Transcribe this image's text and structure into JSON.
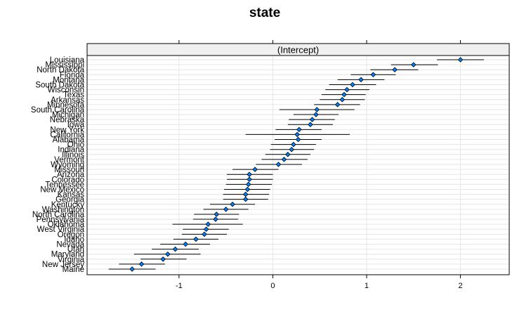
{
  "chart_data": {
    "type": "scatter",
    "title": "state",
    "strip_label": "(Intercept)",
    "xlim": [
      -1.98,
      2.52
    ],
    "x_ticks": [
      -1,
      0,
      1,
      2
    ],
    "x_tick_labels": [
      "-1",
      "0",
      "1",
      "2"
    ],
    "grid": true,
    "colors": {
      "point": "#0080ff",
      "interval": "#000000",
      "strip": "#f0f0f0",
      "grid": "#e6e6e6"
    },
    "points": [
      {
        "state": "Louisiana",
        "estimate": 2.0,
        "lower": 1.75,
        "upper": 2.25
      },
      {
        "state": "Mississippi",
        "estimate": 1.5,
        "lower": 1.26,
        "upper": 1.76
      },
      {
        "state": "North Dakota",
        "estimate": 1.3,
        "lower": 1.04,
        "upper": 1.55
      },
      {
        "state": "Florida",
        "estimate": 1.07,
        "lower": 0.83,
        "upper": 1.31
      },
      {
        "state": "Montana",
        "estimate": 0.94,
        "lower": 0.69,
        "upper": 1.19
      },
      {
        "state": "South Dakota",
        "estimate": 0.85,
        "lower": 0.6,
        "upper": 1.1
      },
      {
        "state": "Wisconsin",
        "estimate": 0.79,
        "lower": 0.56,
        "upper": 1.03
      },
      {
        "state": "Texas",
        "estimate": 0.76,
        "lower": 0.52,
        "upper": 0.99
      },
      {
        "state": "Arkansas",
        "estimate": 0.74,
        "lower": 0.5,
        "upper": 0.98
      },
      {
        "state": "Minnesota",
        "estimate": 0.69,
        "lower": 0.44,
        "upper": 0.93
      },
      {
        "state": "South Carolina",
        "estimate": 0.47,
        "lower": 0.07,
        "upper": 0.87
      },
      {
        "state": "Michigan",
        "estimate": 0.46,
        "lower": 0.22,
        "upper": 0.7
      },
      {
        "state": "Nebraska",
        "estimate": 0.42,
        "lower": 0.17,
        "upper": 0.66
      },
      {
        "state": "Iowa",
        "estimate": 0.4,
        "lower": 0.16,
        "upper": 0.64
      },
      {
        "state": "New York",
        "estimate": 0.28,
        "lower": 0.03,
        "upper": 0.52
      },
      {
        "state": "California",
        "estimate": 0.26,
        "lower": -0.29,
        "upper": 0.82
      },
      {
        "state": "Alabama",
        "estimate": 0.27,
        "lower": 0.02,
        "upper": 0.52
      },
      {
        "state": "Ohio",
        "estimate": 0.22,
        "lower": -0.02,
        "upper": 0.46
      },
      {
        "state": "Indiana",
        "estimate": 0.2,
        "lower": -0.03,
        "upper": 0.44
      },
      {
        "state": "Illinois",
        "estimate": 0.16,
        "lower": -0.08,
        "upper": 0.4
      },
      {
        "state": "Vermont",
        "estimate": 0.12,
        "lower": -0.12,
        "upper": 0.37
      },
      {
        "state": "Wyoming",
        "estimate": 0.06,
        "lower": -0.18,
        "upper": 0.31
      },
      {
        "state": "Missouri",
        "estimate": -0.19,
        "lower": -0.43,
        "upper": 0.06
      },
      {
        "state": "Arizona",
        "estimate": -0.25,
        "lower": -0.49,
        "upper": 0.0
      },
      {
        "state": "Colorado",
        "estimate": -0.25,
        "lower": -0.49,
        "upper": 0.0
      },
      {
        "state": "Tennessee",
        "estimate": -0.26,
        "lower": -0.5,
        "upper": -0.01
      },
      {
        "state": "New Mexico",
        "estimate": -0.27,
        "lower": -0.52,
        "upper": -0.03
      },
      {
        "state": "Kansas",
        "estimate": -0.29,
        "lower": -0.53,
        "upper": -0.04
      },
      {
        "state": "Georgia",
        "estimate": -0.29,
        "lower": -0.53,
        "upper": -0.05
      },
      {
        "state": "Kentucky",
        "estimate": -0.43,
        "lower": -0.67,
        "upper": -0.19
      },
      {
        "state": "Washington",
        "estimate": -0.5,
        "lower": -0.74,
        "upper": -0.26
      },
      {
        "state": "North Carolina",
        "estimate": -0.6,
        "lower": -0.84,
        "upper": -0.36
      },
      {
        "state": "Pennsylvania",
        "estimate": -0.61,
        "lower": -0.85,
        "upper": -0.37
      },
      {
        "state": "Oklahoma",
        "estimate": -0.69,
        "lower": -1.07,
        "upper": -0.32
      },
      {
        "state": "West Virginia",
        "estimate": -0.71,
        "lower": -0.96,
        "upper": -0.47
      },
      {
        "state": "Oregon",
        "estimate": -0.73,
        "lower": -0.97,
        "upper": -0.49
      },
      {
        "state": "Idaho",
        "estimate": -0.82,
        "lower": -1.06,
        "upper": -0.58
      },
      {
        "state": "Nevada",
        "estimate": -0.93,
        "lower": -1.2,
        "upper": -0.67
      },
      {
        "state": "Utah",
        "estimate": -1.04,
        "lower": -1.29,
        "upper": -0.79
      },
      {
        "state": "Maryland",
        "estimate": -1.12,
        "lower": -1.48,
        "upper": -0.77
      },
      {
        "state": "Virginia",
        "estimate": -1.17,
        "lower": -1.41,
        "upper": -0.92
      },
      {
        "state": "New Jersey",
        "estimate": -1.4,
        "lower": -1.64,
        "upper": -1.15
      },
      {
        "state": "Maine",
        "estimate": -1.5,
        "lower": -1.75,
        "upper": -1.25
      }
    ]
  }
}
